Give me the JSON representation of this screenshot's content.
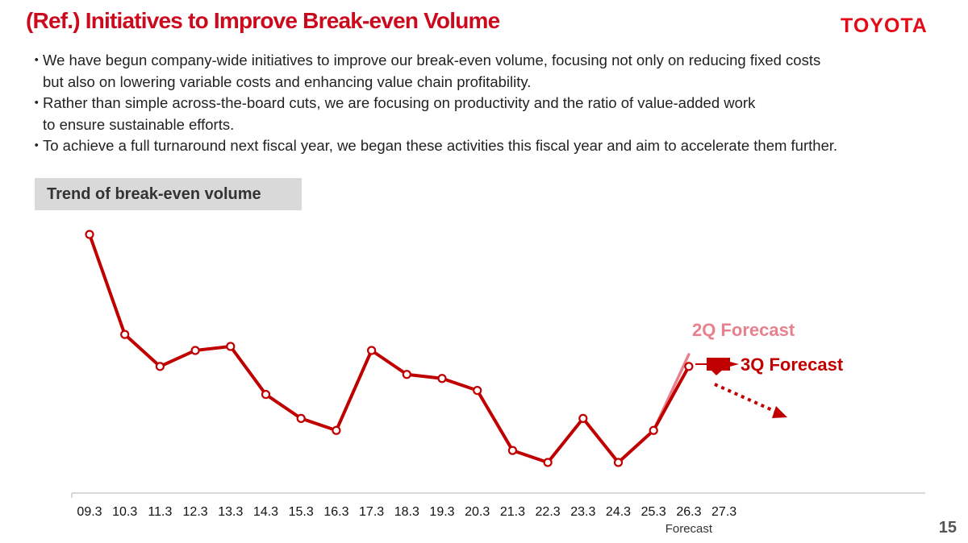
{
  "header": {
    "title": "(Ref.) Initiatives to Improve Break-even Volume",
    "logo": "TOYOTA"
  },
  "bullets": [
    {
      "mark": "・",
      "line1": "We have begun company-wide initiatives to improve our break-even volume, focusing not only on reducing fixed costs",
      "line2": "but also on lowering variable costs and enhancing value chain profitability."
    },
    {
      "mark": "・",
      "line1": "Rather than simple across-the-board cuts, we are focusing on productivity and the ratio of value-added work",
      "line2": "to ensure sustainable efforts."
    },
    {
      "mark": "・",
      "line1": "To achieve a full turnaround next fiscal year, we began these activities this fiscal year and aim to  accelerate them further.",
      "line2": ""
    }
  ],
  "section_label": "Trend of break-even volume",
  "chart_data": {
    "type": "line",
    "title": "Trend of break-even volume",
    "categories": [
      "09.3",
      "10.3",
      "11.3",
      "12.3",
      "13.3",
      "14.3",
      "15.3",
      "16.3",
      "17.3",
      "18.3",
      "19.3",
      "20.3",
      "21.3",
      "22.3",
      "23.3",
      "24.3",
      "25.3",
      "26.3",
      "27.3"
    ],
    "forecast_sublabel": "Forecast",
    "forecast_sublabel_category": "26.3",
    "series": [
      {
        "name": "Break-even volume",
        "color": "#c00000",
        "values": [
          100,
          75,
          67,
          71,
          72,
          60,
          54,
          51,
          71,
          65,
          64,
          61,
          46,
          43,
          54,
          43,
          51,
          67,
          null
        ]
      },
      {
        "name": "2Q Forecast",
        "color": "#e8808e",
        "values": [
          null,
          null,
          null,
          null,
          null,
          null,
          null,
          null,
          null,
          null,
          null,
          null,
          null,
          null,
          null,
          43,
          51,
          70,
          null
        ]
      }
    ],
    "annotations": [
      {
        "text": "2Q Forecast",
        "color": "#e8808e"
      },
      {
        "text": "3Q Forecast",
        "color": "#c00000"
      },
      {
        "text": "projected further improvement",
        "kind": "dotted-arrow",
        "from_category": "26.3",
        "direction": "down",
        "drawn_as_text": false
      }
    ],
    "yaxis": "none",
    "ylim": [
      40,
      105
    ],
    "grid": false
  },
  "footer": {
    "page_number": "15"
  }
}
